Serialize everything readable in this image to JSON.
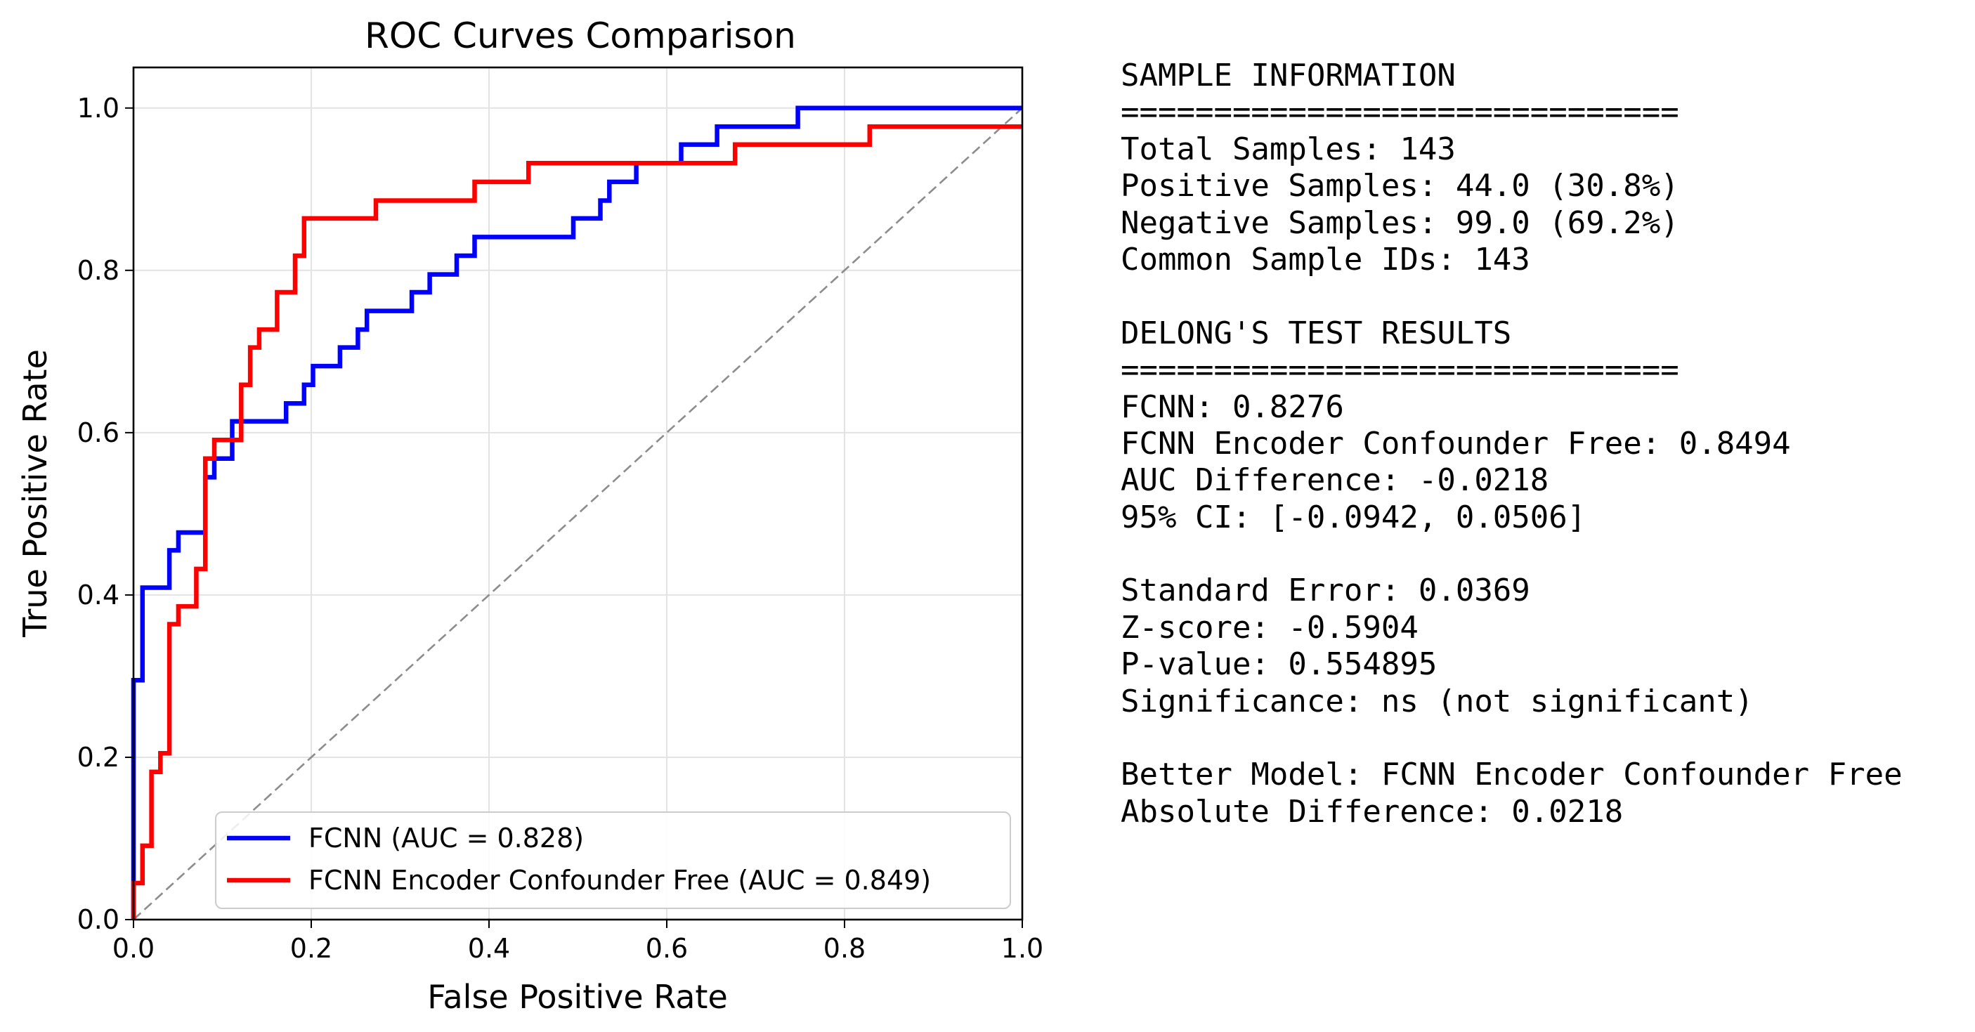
{
  "chart_data": {
    "type": "line",
    "title": "ROC Curves Comparison",
    "xlabel": "False Positive Rate",
    "ylabel": "True Positive Rate",
    "xlim": [
      0.0,
      1.0
    ],
    "ylim": [
      0.0,
      1.05
    ],
    "x_ticks": [
      "0.0",
      "0.2",
      "0.4",
      "0.6",
      "0.8",
      "1.0"
    ],
    "y_ticks": [
      "0.0",
      "0.2",
      "0.4",
      "0.6",
      "0.8",
      "1.0"
    ],
    "grid": true,
    "legend_position": "lower-right",
    "series": [
      {
        "name": "FCNN (AUC = 0.828)",
        "color": "#0000ff",
        "points": [
          [
            0.0,
            0.0
          ],
          [
            0.0,
            0.295
          ],
          [
            0.0101,
            0.295
          ],
          [
            0.0101,
            0.409
          ],
          [
            0.0404,
            0.409
          ],
          [
            0.0404,
            0.455
          ],
          [
            0.0505,
            0.455
          ],
          [
            0.0505,
            0.477
          ],
          [
            0.0808,
            0.477
          ],
          [
            0.0808,
            0.545
          ],
          [
            0.0909,
            0.545
          ],
          [
            0.0909,
            0.568
          ],
          [
            0.1111,
            0.568
          ],
          [
            0.1111,
            0.614
          ],
          [
            0.1717,
            0.614
          ],
          [
            0.1717,
            0.636
          ],
          [
            0.1919,
            0.636
          ],
          [
            0.1919,
            0.659
          ],
          [
            0.202,
            0.659
          ],
          [
            0.202,
            0.682
          ],
          [
            0.2323,
            0.682
          ],
          [
            0.2323,
            0.705
          ],
          [
            0.2525,
            0.705
          ],
          [
            0.2525,
            0.727
          ],
          [
            0.2626,
            0.727
          ],
          [
            0.2626,
            0.75
          ],
          [
            0.3131,
            0.75
          ],
          [
            0.3131,
            0.773
          ],
          [
            0.3333,
            0.773
          ],
          [
            0.3333,
            0.795
          ],
          [
            0.3636,
            0.795
          ],
          [
            0.3636,
            0.818
          ],
          [
            0.3838,
            0.818
          ],
          [
            0.3838,
            0.841
          ],
          [
            0.4949,
            0.841
          ],
          [
            0.4949,
            0.864
          ],
          [
            0.5253,
            0.864
          ],
          [
            0.5253,
            0.886
          ],
          [
            0.5354,
            0.886
          ],
          [
            0.5354,
            0.909
          ],
          [
            0.5657,
            0.909
          ],
          [
            0.5657,
            0.932
          ],
          [
            0.6162,
            0.932
          ],
          [
            0.6162,
            0.955
          ],
          [
            0.6566,
            0.955
          ],
          [
            0.6566,
            0.977
          ],
          [
            0.7475,
            0.977
          ],
          [
            0.7475,
            1.0
          ],
          [
            1.0,
            1.0
          ]
        ]
      },
      {
        "name": "FCNN Encoder Confounder Free (AUC = 0.849)",
        "color": "#ff0000",
        "points": [
          [
            0.0,
            0.0
          ],
          [
            0.0,
            0.045
          ],
          [
            0.0101,
            0.045
          ],
          [
            0.0101,
            0.091
          ],
          [
            0.0202,
            0.091
          ],
          [
            0.0202,
            0.182
          ],
          [
            0.0303,
            0.182
          ],
          [
            0.0303,
            0.205
          ],
          [
            0.0404,
            0.205
          ],
          [
            0.0404,
            0.364
          ],
          [
            0.0505,
            0.364
          ],
          [
            0.0505,
            0.386
          ],
          [
            0.0707,
            0.386
          ],
          [
            0.0707,
            0.432
          ],
          [
            0.0808,
            0.432
          ],
          [
            0.0808,
            0.568
          ],
          [
            0.0909,
            0.568
          ],
          [
            0.0909,
            0.591
          ],
          [
            0.1212,
            0.591
          ],
          [
            0.1212,
            0.659
          ],
          [
            0.1313,
            0.659
          ],
          [
            0.1313,
            0.705
          ],
          [
            0.1414,
            0.705
          ],
          [
            0.1414,
            0.727
          ],
          [
            0.1616,
            0.727
          ],
          [
            0.1616,
            0.773
          ],
          [
            0.1818,
            0.773
          ],
          [
            0.1818,
            0.818
          ],
          [
            0.1919,
            0.818
          ],
          [
            0.1919,
            0.864
          ],
          [
            0.2727,
            0.864
          ],
          [
            0.2727,
            0.886
          ],
          [
            0.3838,
            0.886
          ],
          [
            0.3838,
            0.909
          ],
          [
            0.4444,
            0.909
          ],
          [
            0.4444,
            0.932
          ],
          [
            0.6768,
            0.932
          ],
          [
            0.6768,
            0.955
          ],
          [
            0.8283,
            0.955
          ],
          [
            0.8283,
            0.977
          ],
          [
            1.0,
            0.977
          ]
        ]
      }
    ],
    "reference_line": {
      "points": [
        [
          0.0,
          0.0
        ],
        [
          1.0,
          1.0
        ]
      ],
      "color": "#8c8c8c",
      "style": "dashed"
    }
  },
  "stats": {
    "lines": [
      "SAMPLE INFORMATION",
      "==============================",
      "Total Samples: 143",
      "Positive Samples: 44.0 (30.8%)",
      "Negative Samples: 99.0 (69.2%)",
      "Common Sample IDs: 143",
      "",
      "DELONG'S TEST RESULTS",
      "==============================",
      "FCNN: 0.8276",
      "FCNN Encoder Confounder Free: 0.8494",
      "AUC Difference: -0.0218",
      "95% CI: [-0.0942, 0.0506]",
      "",
      "Standard Error: 0.0369",
      "Z-score: -0.5904",
      "P-value: 0.554895",
      "Significance: ns (not significant)",
      "",
      "Better Model: FCNN Encoder Confounder Free",
      "Absolute Difference: 0.0218"
    ]
  }
}
